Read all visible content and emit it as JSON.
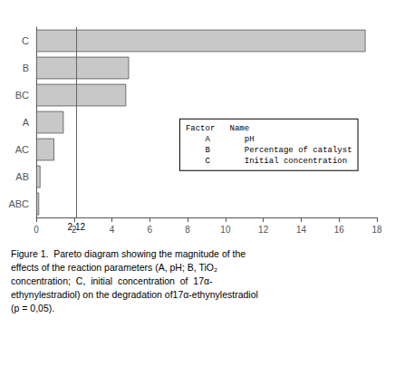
{
  "chart_data": {
    "type": "bar",
    "orientation": "horizontal",
    "categories": [
      "C",
      "B",
      "BC",
      "A",
      "AC",
      "AB",
      "ABC"
    ],
    "values": [
      17.4,
      4.9,
      4.75,
      1.45,
      0.95,
      0.22,
      0.15
    ],
    "color": "#c8c8c8",
    "xlim": [
      0,
      18
    ],
    "xticks": [
      0,
      2,
      4,
      6,
      8,
      10,
      12,
      14,
      16,
      18
    ],
    "grid": false,
    "reference_line": 2.12,
    "annotations": [
      "Factor   Name\n    A       pH\n    B       Percentage of catalyst\n    C       Initial concentration",
      "Figure 1.  Pareto diagram showing the magnitude of the\neffects of the reaction parameters (A, pH; B, TiO₂\nconcentration;  C,  initial  concentration  of  17α-\nethynylestradiol) on the degradation of17α-ethynylestradiol\n(p = 0,05)."
    ]
  }
}
